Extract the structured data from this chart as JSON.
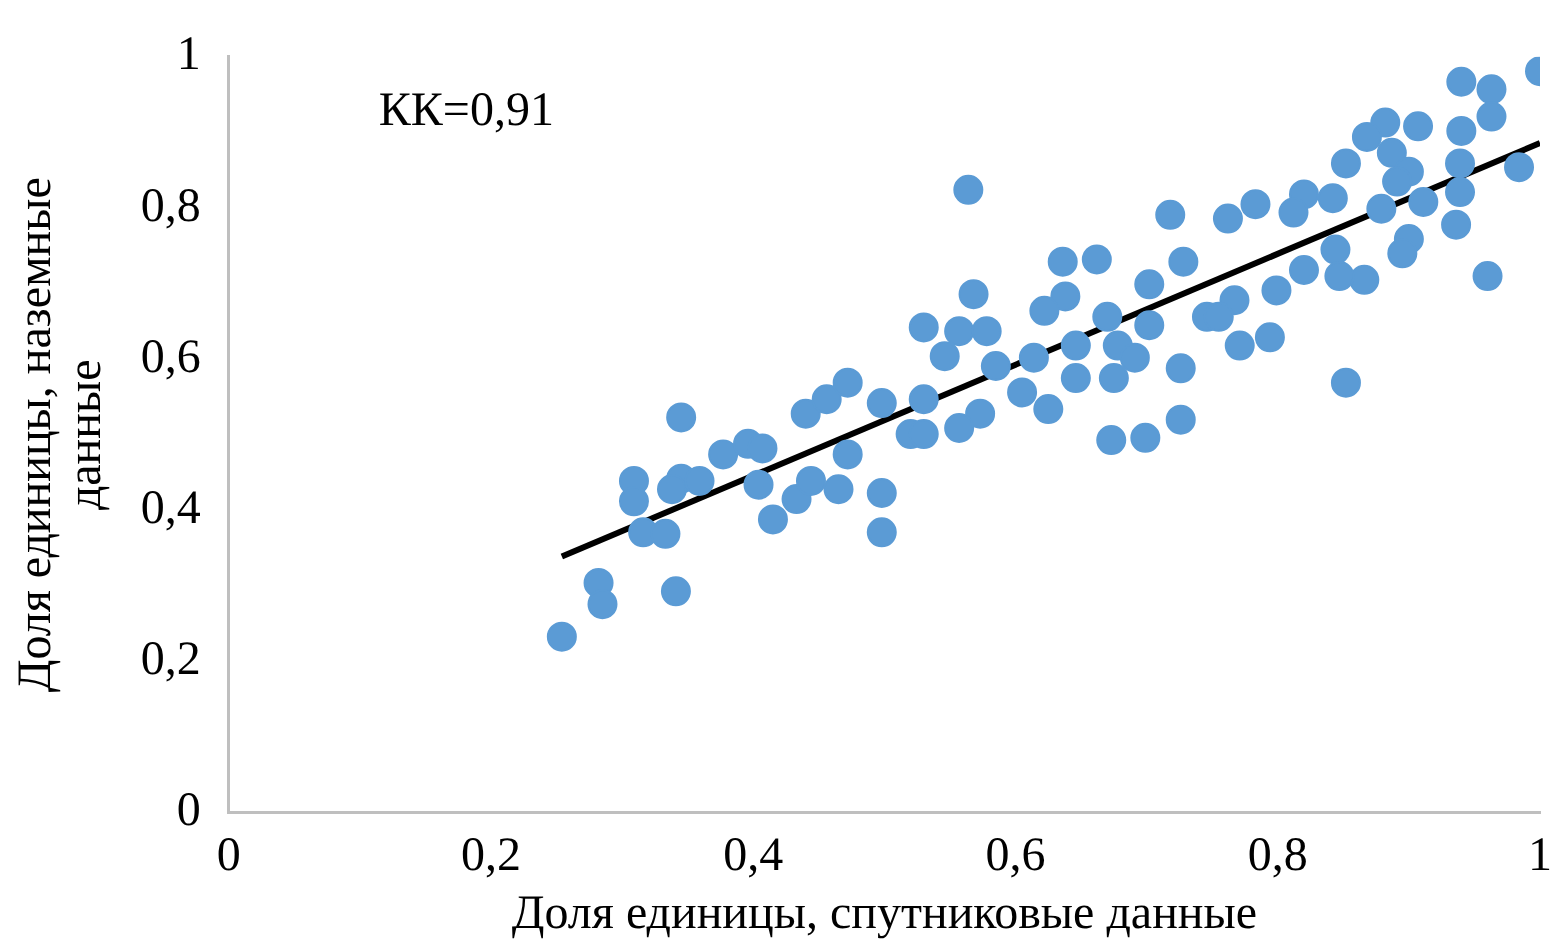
{
  "chart_data": {
    "type": "scatter",
    "xlabel": "Доля единицы, спутниковые данные",
    "ylabel": "Доля единицы, наземные данные",
    "annotations": [
      "КК=0,91"
    ],
    "xlim": [
      0,
      1
    ],
    "ylim": [
      0,
      1
    ],
    "xticks": [
      0,
      {
        "value": 0.2,
        "label": "0,2"
      },
      {
        "value": 0.4,
        "label": "0,4"
      },
      {
        "value": 0.6,
        "label": "0,6"
      },
      {
        "value": 0.8,
        "label": "0,8"
      },
      1
    ],
    "yticks": [
      0,
      {
        "value": 0.2,
        "label": "0,2"
      },
      {
        "value": 0.4,
        "label": "0,4"
      },
      {
        "value": 0.6,
        "label": "0,6"
      },
      {
        "value": 0.8,
        "label": "0,8"
      },
      1
    ],
    "grid": false,
    "legend": false,
    "marker": "circle",
    "series": [
      {
        "type": "scatter",
        "color": "#5b9bd5",
        "x": [
          0.254,
          0.282,
          0.285,
          0.341,
          0.345,
          0.309,
          0.309,
          0.316,
          0.333,
          0.345,
          0.338,
          0.359,
          0.377,
          0.396,
          0.407,
          0.404,
          0.415,
          0.433,
          0.444,
          0.465,
          0.472,
          0.498,
          0.498,
          0.44,
          0.456,
          0.472,
          0.52,
          0.498,
          0.53,
          0.568,
          0.638,
          0.53,
          0.557,
          0.578,
          0.622,
          0.67,
          0.702,
          0.746,
          0.546,
          0.585,
          0.614,
          0.646,
          0.678,
          0.691,
          0.675,
          0.726,
          0.646,
          0.605,
          0.625,
          0.573,
          0.557,
          0.53,
          0.726,
          0.673,
          0.699,
          0.94,
          0.963,
          1.0,
          0.963,
          0.94,
          0.907,
          0.882,
          0.868,
          0.887,
          0.852,
          0.9,
          0.939,
          0.984,
          0.891,
          0.82,
          0.783,
          0.812,
          0.842,
          0.879,
          0.939,
          0.762,
          0.911,
          0.936,
          0.9,
          0.895,
          0.844,
          0.82,
          0.866,
          0.847,
          0.799,
          0.767,
          0.755,
          0.771,
          0.794,
          0.96,
          0.852,
          0.564,
          0.636,
          0.662,
          0.718,
          0.728,
          0.702
        ],
        "values": [
          0.233,
          0.304,
          0.276,
          0.293,
          0.523,
          0.439,
          0.412,
          0.371,
          0.369,
          0.442,
          0.428,
          0.439,
          0.474,
          0.488,
          0.482,
          0.434,
          0.388,
          0.415,
          0.439,
          0.428,
          0.474,
          0.423,
          0.371,
          0.528,
          0.547,
          0.569,
          0.501,
          0.542,
          0.547,
          0.686,
          0.683,
          0.642,
          0.637,
          0.637,
          0.664,
          0.656,
          0.645,
          0.656,
          0.604,
          0.591,
          0.602,
          0.618,
          0.618,
          0.602,
          0.575,
          0.588,
          0.575,
          0.556,
          0.534,
          0.528,
          0.509,
          0.501,
          0.52,
          0.493,
          0.496,
          0.967,
          0.957,
          0.981,
          0.921,
          0.902,
          0.908,
          0.913,
          0.894,
          0.873,
          0.859,
          0.848,
          0.859,
          0.854,
          0.835,
          0.818,
          0.805,
          0.794,
          0.813,
          0.799,
          0.821,
          0.786,
          0.808,
          0.778,
          0.759,
          0.74,
          0.745,
          0.718,
          0.705,
          0.71,
          0.691,
          0.678,
          0.656,
          0.618,
          0.629,
          0.71,
          0.569,
          0.824,
          0.729,
          0.732,
          0.791,
          0.729,
          0.699
        ]
      },
      {
        "type": "line",
        "color": "#000000",
        "marker": "none",
        "x": [
          0.254,
          1.0
        ],
        "values": [
          0.339,
          0.886
        ]
      }
    ]
  }
}
